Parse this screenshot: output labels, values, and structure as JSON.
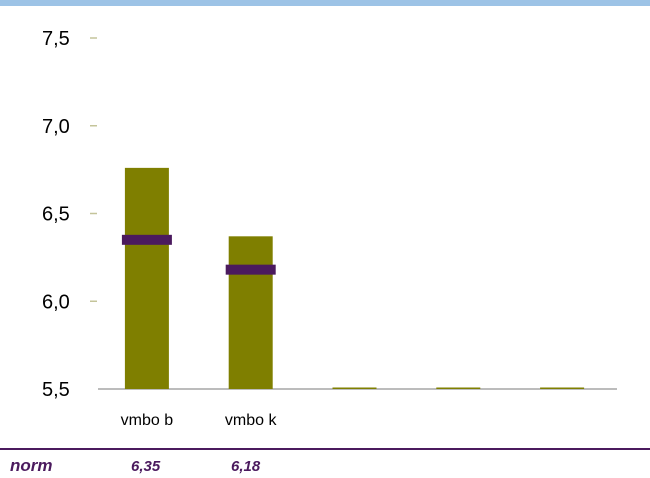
{
  "chart_data": {
    "type": "bar",
    "categories": [
      "vmbo b",
      "vmbo k",
      "",
      "",
      ""
    ],
    "values": [
      6.76,
      6.37,
      5.5,
      5.5,
      5.5
    ],
    "norm_values": [
      6.35,
      6.18,
      null,
      null,
      null
    ],
    "ylim": [
      5.5,
      7.5
    ],
    "yticks": [
      "5,5",
      "6,0",
      "6,5",
      "7,0",
      "7,5"
    ],
    "ytick_values": [
      5.5,
      6.0,
      6.5,
      7.0,
      7.5
    ],
    "grid": false,
    "colors": {
      "bar": "#7f7f00",
      "norm_marker": "#4b1a5e",
      "axis": "#a6a6a6",
      "tick": "#c4c49a",
      "top_bar": "#9dc3e6"
    }
  },
  "norm_row": {
    "label": "norm",
    "values": [
      "6,35",
      "6,18"
    ]
  }
}
